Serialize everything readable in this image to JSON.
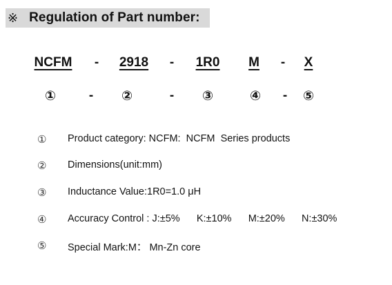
{
  "header": {
    "mark": "※",
    "title": "Regulation of Part number:"
  },
  "part_code": {
    "segments": [
      "NCFM",
      "2918",
      "1R0",
      "M",
      "X"
    ],
    "separator": "-"
  },
  "position_numbers": {
    "circled": [
      "①",
      "②",
      "③",
      "④",
      "⑤"
    ],
    "separator": "-"
  },
  "definitions": [
    {
      "num": "①",
      "text": "Product category: NCFM:  NCFM  Series products"
    },
    {
      "num": "②",
      "text": "Dimensions(unit:mm)"
    },
    {
      "num": "③",
      "text": "Inductance Value:1R0=1.0 μH"
    },
    {
      "num": "④",
      "text": "Accuracy Control : J:±5%      K:±10%      M:±20%      N:±30%"
    },
    {
      "num": "⑤",
      "text": "Special Mark:M： Mn-Zn core"
    }
  ]
}
